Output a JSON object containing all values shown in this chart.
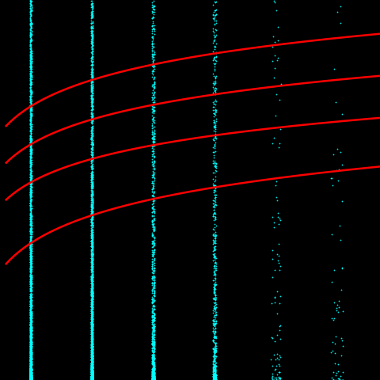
{
  "background_color": "#000000",
  "marker_color": "#00FFFF",
  "line_color": "#FF0000",
  "x_positions": [
    1,
    2,
    3,
    4,
    5,
    6
  ],
  "x_counts": [
    2000,
    1800,
    900,
    600,
    80,
    50
  ],
  "x_spread": [
    0.015,
    0.015,
    0.025,
    0.025,
    0.08,
    0.1
  ],
  "xlim": [
    0.5,
    6.7
  ],
  "ylim": [
    0.0,
    1.0
  ],
  "curve_params": [
    [
      0.72,
      0.18
    ],
    [
      0.62,
      0.17
    ],
    [
      0.52,
      0.16
    ],
    [
      0.36,
      0.19
    ]
  ],
  "figsize": [
    4.8,
    4.8
  ],
  "dpi": 100
}
